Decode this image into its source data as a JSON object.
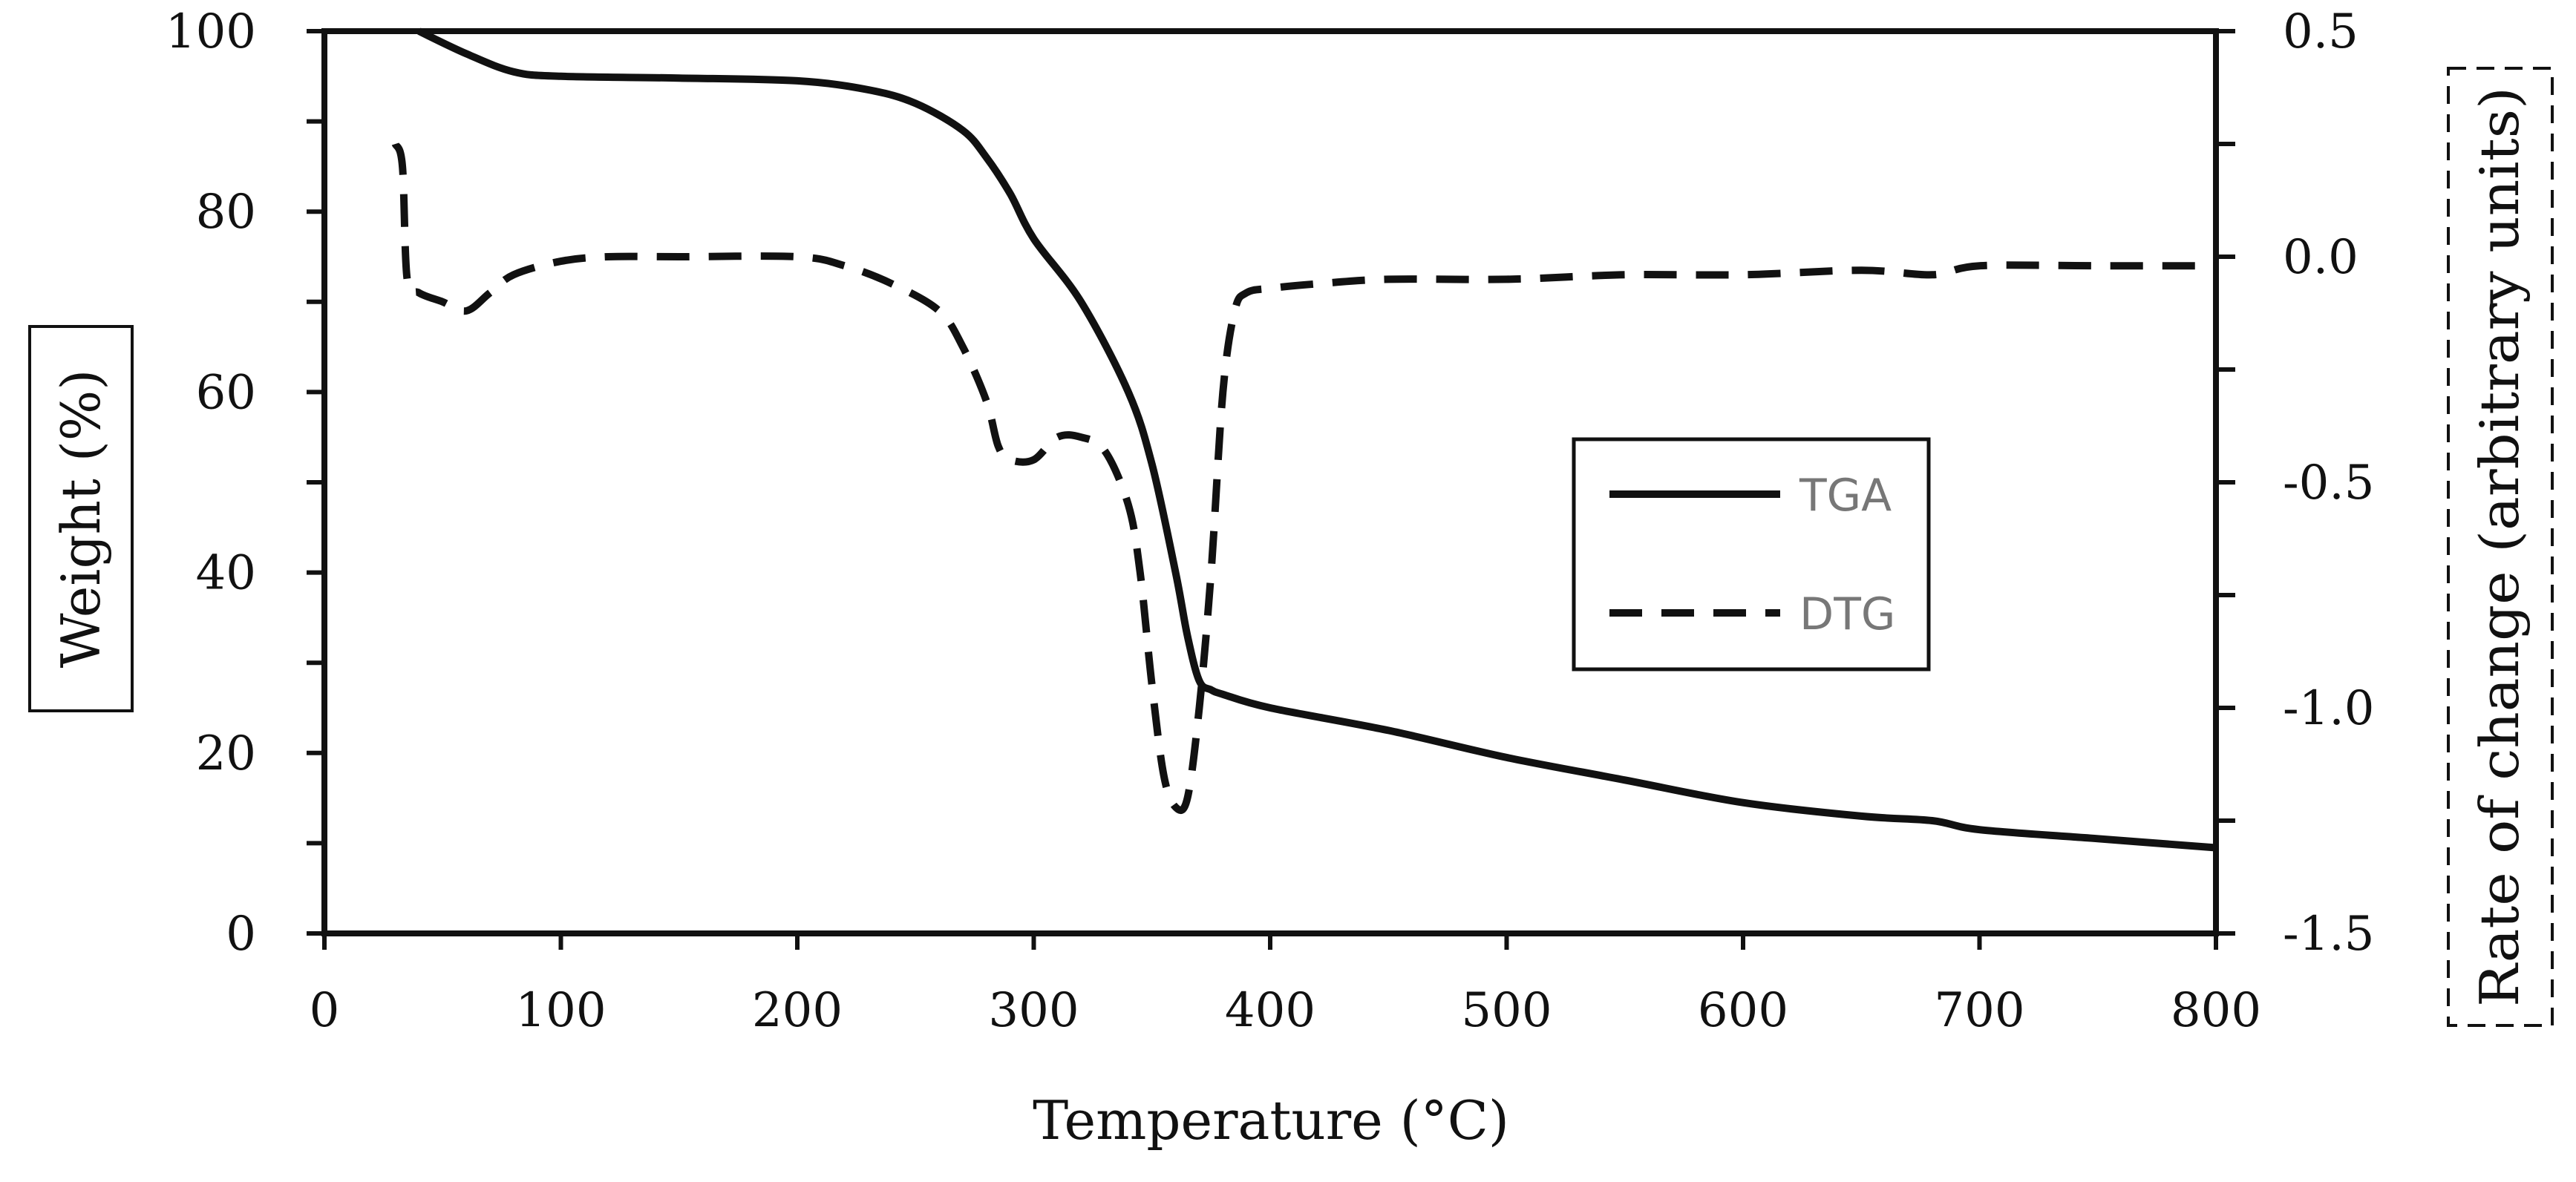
{
  "chart_data": {
    "type": "line",
    "title": "",
    "xlabel": "Temperature (°C)",
    "ylabel": "Weight (%)",
    "y2label": "Rate of change (arbitrary units)",
    "xlim": [
      0,
      800
    ],
    "ylim": [
      0,
      100
    ],
    "y2lim": [
      -1.5,
      0.5
    ],
    "xticks": [
      "0",
      "100",
      "200",
      "300",
      "400",
      "500",
      "600",
      "700",
      "800"
    ],
    "yticks": [
      "0",
      "20",
      "40",
      "60",
      "80",
      "100"
    ],
    "y2ticks": [
      "-1.5",
      "-1.0",
      "-0.5",
      "0.0",
      "0.5"
    ],
    "grid": false,
    "legend_position": "center-right",
    "series": [
      {
        "name": "TGA",
        "axis": "left",
        "style": "solid",
        "x": [
          40,
          60,
          80,
          100,
          150,
          200,
          230,
          250,
          270,
          280,
          290,
          300,
          320,
          340,
          350,
          360,
          365,
          370,
          375,
          380,
          400,
          450,
          500,
          550,
          600,
          650,
          680,
          700,
          750,
          800
        ],
        "y": [
          100,
          97.5,
          95.5,
          95,
          94.8,
          94.5,
          93.5,
          92,
          89,
          86,
          82,
          77,
          70,
          60,
          52,
          40,
          33,
          28,
          27,
          26.5,
          25,
          22.5,
          19.5,
          17,
          14.5,
          13,
          12.5,
          11.5,
          10.5,
          9.5
        ]
      },
      {
        "name": "DTG",
        "axis": "right",
        "style": "dashed",
        "x": [
          30,
          33,
          35,
          40,
          50,
          60,
          70,
          80,
          100,
          120,
          150,
          200,
          220,
          240,
          260,
          270,
          280,
          285,
          290,
          300,
          310,
          320,
          330,
          340,
          345,
          350,
          355,
          360,
          365,
          370,
          375,
          380,
          385,
          390,
          400,
          420,
          450,
          500,
          550,
          600,
          650,
          680,
          700,
          750,
          800
        ],
        "y": [
          0.25,
          0.2,
          -0.05,
          -0.08,
          -0.1,
          -0.12,
          -0.08,
          -0.04,
          -0.01,
          0.0,
          0.0,
          0.0,
          -0.02,
          -0.06,
          -0.12,
          -0.2,
          -0.32,
          -0.42,
          -0.45,
          -0.45,
          -0.4,
          -0.4,
          -0.43,
          -0.55,
          -0.7,
          -0.95,
          -1.15,
          -1.22,
          -1.2,
          -1.0,
          -0.7,
          -0.3,
          -0.12,
          -0.08,
          -0.07,
          -0.06,
          -0.05,
          -0.05,
          -0.04,
          -0.04,
          -0.03,
          -0.04,
          -0.02,
          -0.02,
          -0.02
        ]
      }
    ]
  }
}
